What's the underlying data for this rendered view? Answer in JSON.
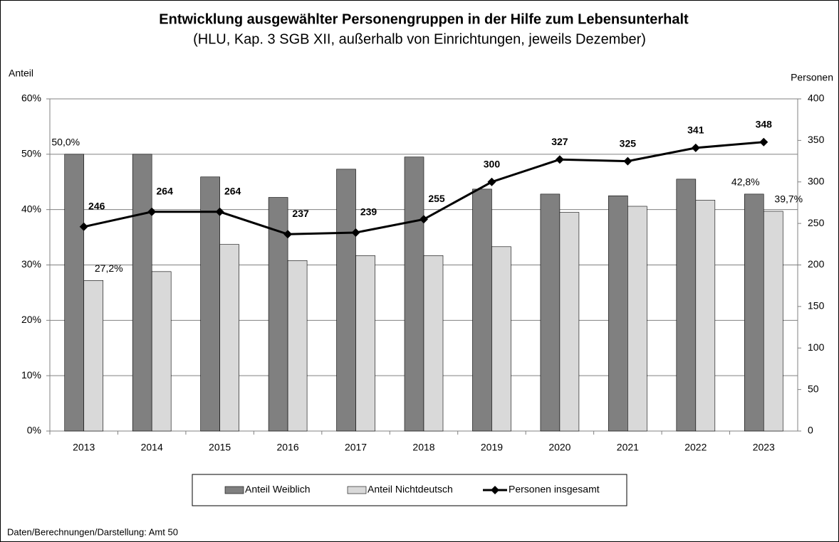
{
  "chart_data": {
    "type": "bar",
    "title": "Entwicklung ausgewählter Personengruppen in der Hilfe zum Lebensunterhalt",
    "subtitle": "(HLU, Kap. 3 SGB XII, außerhalb von Einrichtungen, jeweils Dezember)",
    "ylabel": "Anteil",
    "y2label": "Personen",
    "note": "Daten/Berechnungen/Darstellung:  Amt 50",
    "categories": [
      "2013",
      "2014",
      "2015",
      "2016",
      "2017",
      "2018",
      "2019",
      "2020",
      "2021",
      "2022",
      "2023"
    ],
    "series": [
      {
        "name": "Anteil Weiblich",
        "type": "bar",
        "color": "#808080",
        "values": [
          50.0,
          50.0,
          45.9,
          42.2,
          47.3,
          49.5,
          43.7,
          42.8,
          42.5,
          45.5,
          42.8
        ],
        "value_labels": [
          "50,0%",
          null,
          null,
          null,
          null,
          null,
          null,
          null,
          null,
          null,
          "42,8%"
        ]
      },
      {
        "name": "Anteil Nichtdeutsch",
        "type": "bar",
        "color": "#d9d9d9",
        "values": [
          27.2,
          28.8,
          33.7,
          30.8,
          31.7,
          31.7,
          33.3,
          39.5,
          40.6,
          41.7,
          39.7
        ],
        "value_labels": [
          "27,2%",
          null,
          null,
          null,
          null,
          null,
          null,
          null,
          null,
          null,
          "39,7%"
        ]
      },
      {
        "name": "Personen insgesamt",
        "type": "line",
        "axis": "y2",
        "color": "#000000",
        "values": [
          246,
          264,
          264,
          237,
          239,
          255,
          300,
          327,
          325,
          341,
          348
        ]
      }
    ],
    "ylim": [
      0,
      60
    ],
    "yticks": [
      {
        "value": 0,
        "label": "0%"
      },
      {
        "value": 10,
        "label": "10%"
      },
      {
        "value": 20,
        "label": "20%"
      },
      {
        "value": 30,
        "label": "30%"
      },
      {
        "value": 40,
        "label": "40%"
      },
      {
        "value": 50,
        "label": "50%"
      },
      {
        "value": 60,
        "label": "60%"
      }
    ],
    "y2lim": [
      0,
      400
    ],
    "y2ticks": [
      0,
      50,
      100,
      150,
      200,
      250,
      300,
      350,
      400
    ],
    "grid": true,
    "legend": "bottom"
  }
}
